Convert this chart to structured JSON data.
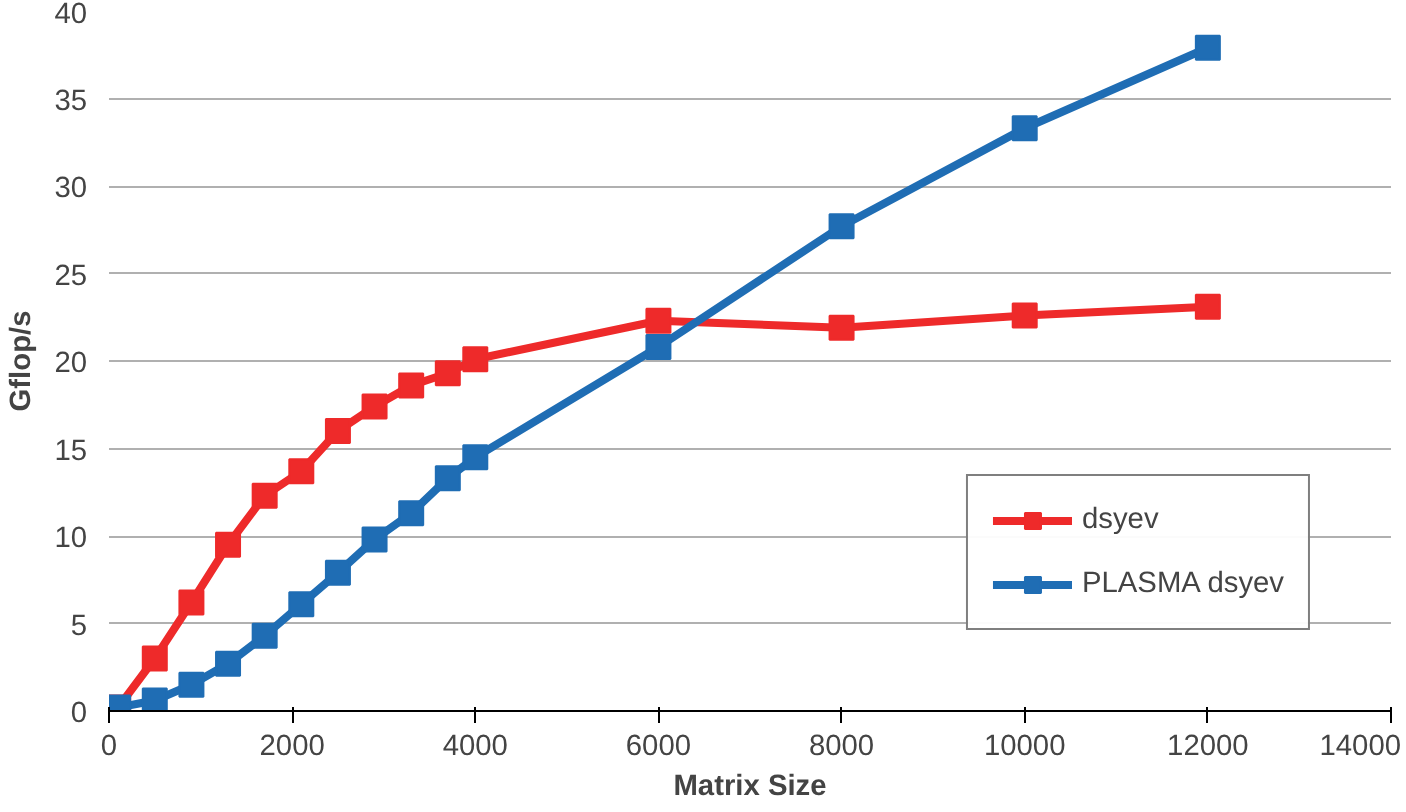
{
  "chart_data": {
    "type": "line",
    "xlabel": "Matrix Size",
    "ylabel": "Gflop/s",
    "xlim": [
      0,
      14000
    ],
    "xticks": [
      0,
      2000,
      4000,
      6000,
      8000,
      10000,
      12000,
      14000
    ],
    "ylim": [
      0,
      40
    ],
    "yticks": [
      0,
      5,
      10,
      15,
      20,
      25,
      30,
      35,
      40
    ],
    "grid": "y",
    "legend": "bottom right",
    "marker": "square",
    "line_style": "solid",
    "series": [
      {
        "name": "dsyev",
        "color": "#ee2a2a",
        "x": [
          100,
          500,
          900,
          1300,
          1700,
          2100,
          2500,
          2900,
          3300,
          3700,
          4000,
          6000,
          8000,
          10000,
          12000
        ],
        "values": [
          0.2,
          3.0,
          6.2,
          9.5,
          12.3,
          13.7,
          16.0,
          17.4,
          18.6,
          19.3,
          20.1,
          22.3,
          21.9,
          22.6,
          23.1
        ]
      },
      {
        "name": "PLASMA dsyev",
        "color": "#1f6db4",
        "x": [
          100,
          500,
          900,
          1300,
          1700,
          2100,
          2500,
          2900,
          3300,
          3700,
          4000,
          6000,
          8000,
          10000,
          12000
        ],
        "values": [
          0.2,
          0.6,
          1.5,
          2.7,
          4.3,
          6.1,
          7.9,
          9.8,
          11.3,
          13.3,
          14.5,
          20.8,
          27.7,
          33.3,
          37.9
        ]
      }
    ]
  }
}
